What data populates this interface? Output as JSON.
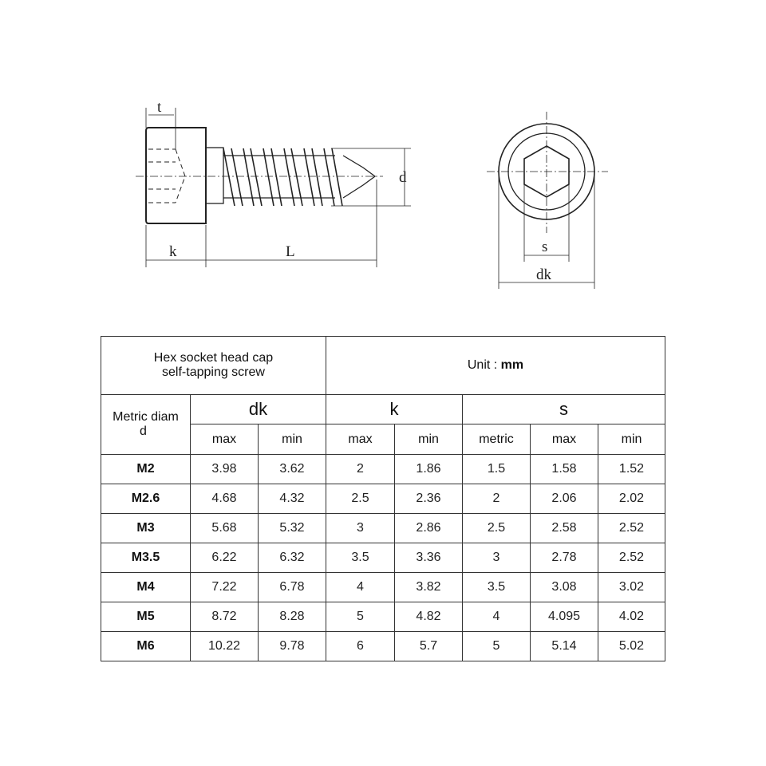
{
  "drawing": {
    "side_view_labels": {
      "t": "t",
      "k": "k",
      "L": "L",
      "d": "d"
    },
    "top_view_labels": {
      "s": "s",
      "dk": "dk"
    }
  },
  "table": {
    "title_line1": "Hex socket head cap",
    "title_line2": "self-tapping screw",
    "unit_label": "Unit :",
    "unit_value": "mm",
    "diam_label_line1": "Metric diam",
    "diam_label_line2": "d",
    "groups": [
      "dk",
      "k",
      "s"
    ],
    "subheaders": [
      "max",
      "min",
      "max",
      "min",
      "metric",
      "max",
      "min"
    ],
    "rows": [
      [
        "M2",
        "3.98",
        "3.62",
        "2",
        "1.86",
        "1.5",
        "1.58",
        "1.52"
      ],
      [
        "M2.6",
        "4.68",
        "4.32",
        "2.5",
        "2.36",
        "2",
        "2.06",
        "2.02"
      ],
      [
        "M3",
        "5.68",
        "5.32",
        "3",
        "2.86",
        "2.5",
        "2.58",
        "2.52"
      ],
      [
        "M3.5",
        "6.22",
        "6.32",
        "3.5",
        "3.36",
        "3",
        "2.78",
        "2.52"
      ],
      [
        "M4",
        "7.22",
        "6.78",
        "4",
        "3.82",
        "3.5",
        "3.08",
        "3.02"
      ],
      [
        "M5",
        "8.72",
        "8.28",
        "5",
        "4.82",
        "4",
        "4.095",
        "4.02"
      ],
      [
        "M6",
        "10.22",
        "9.78",
        "6",
        "5.7",
        "5",
        "5.14",
        "5.02"
      ]
    ]
  }
}
